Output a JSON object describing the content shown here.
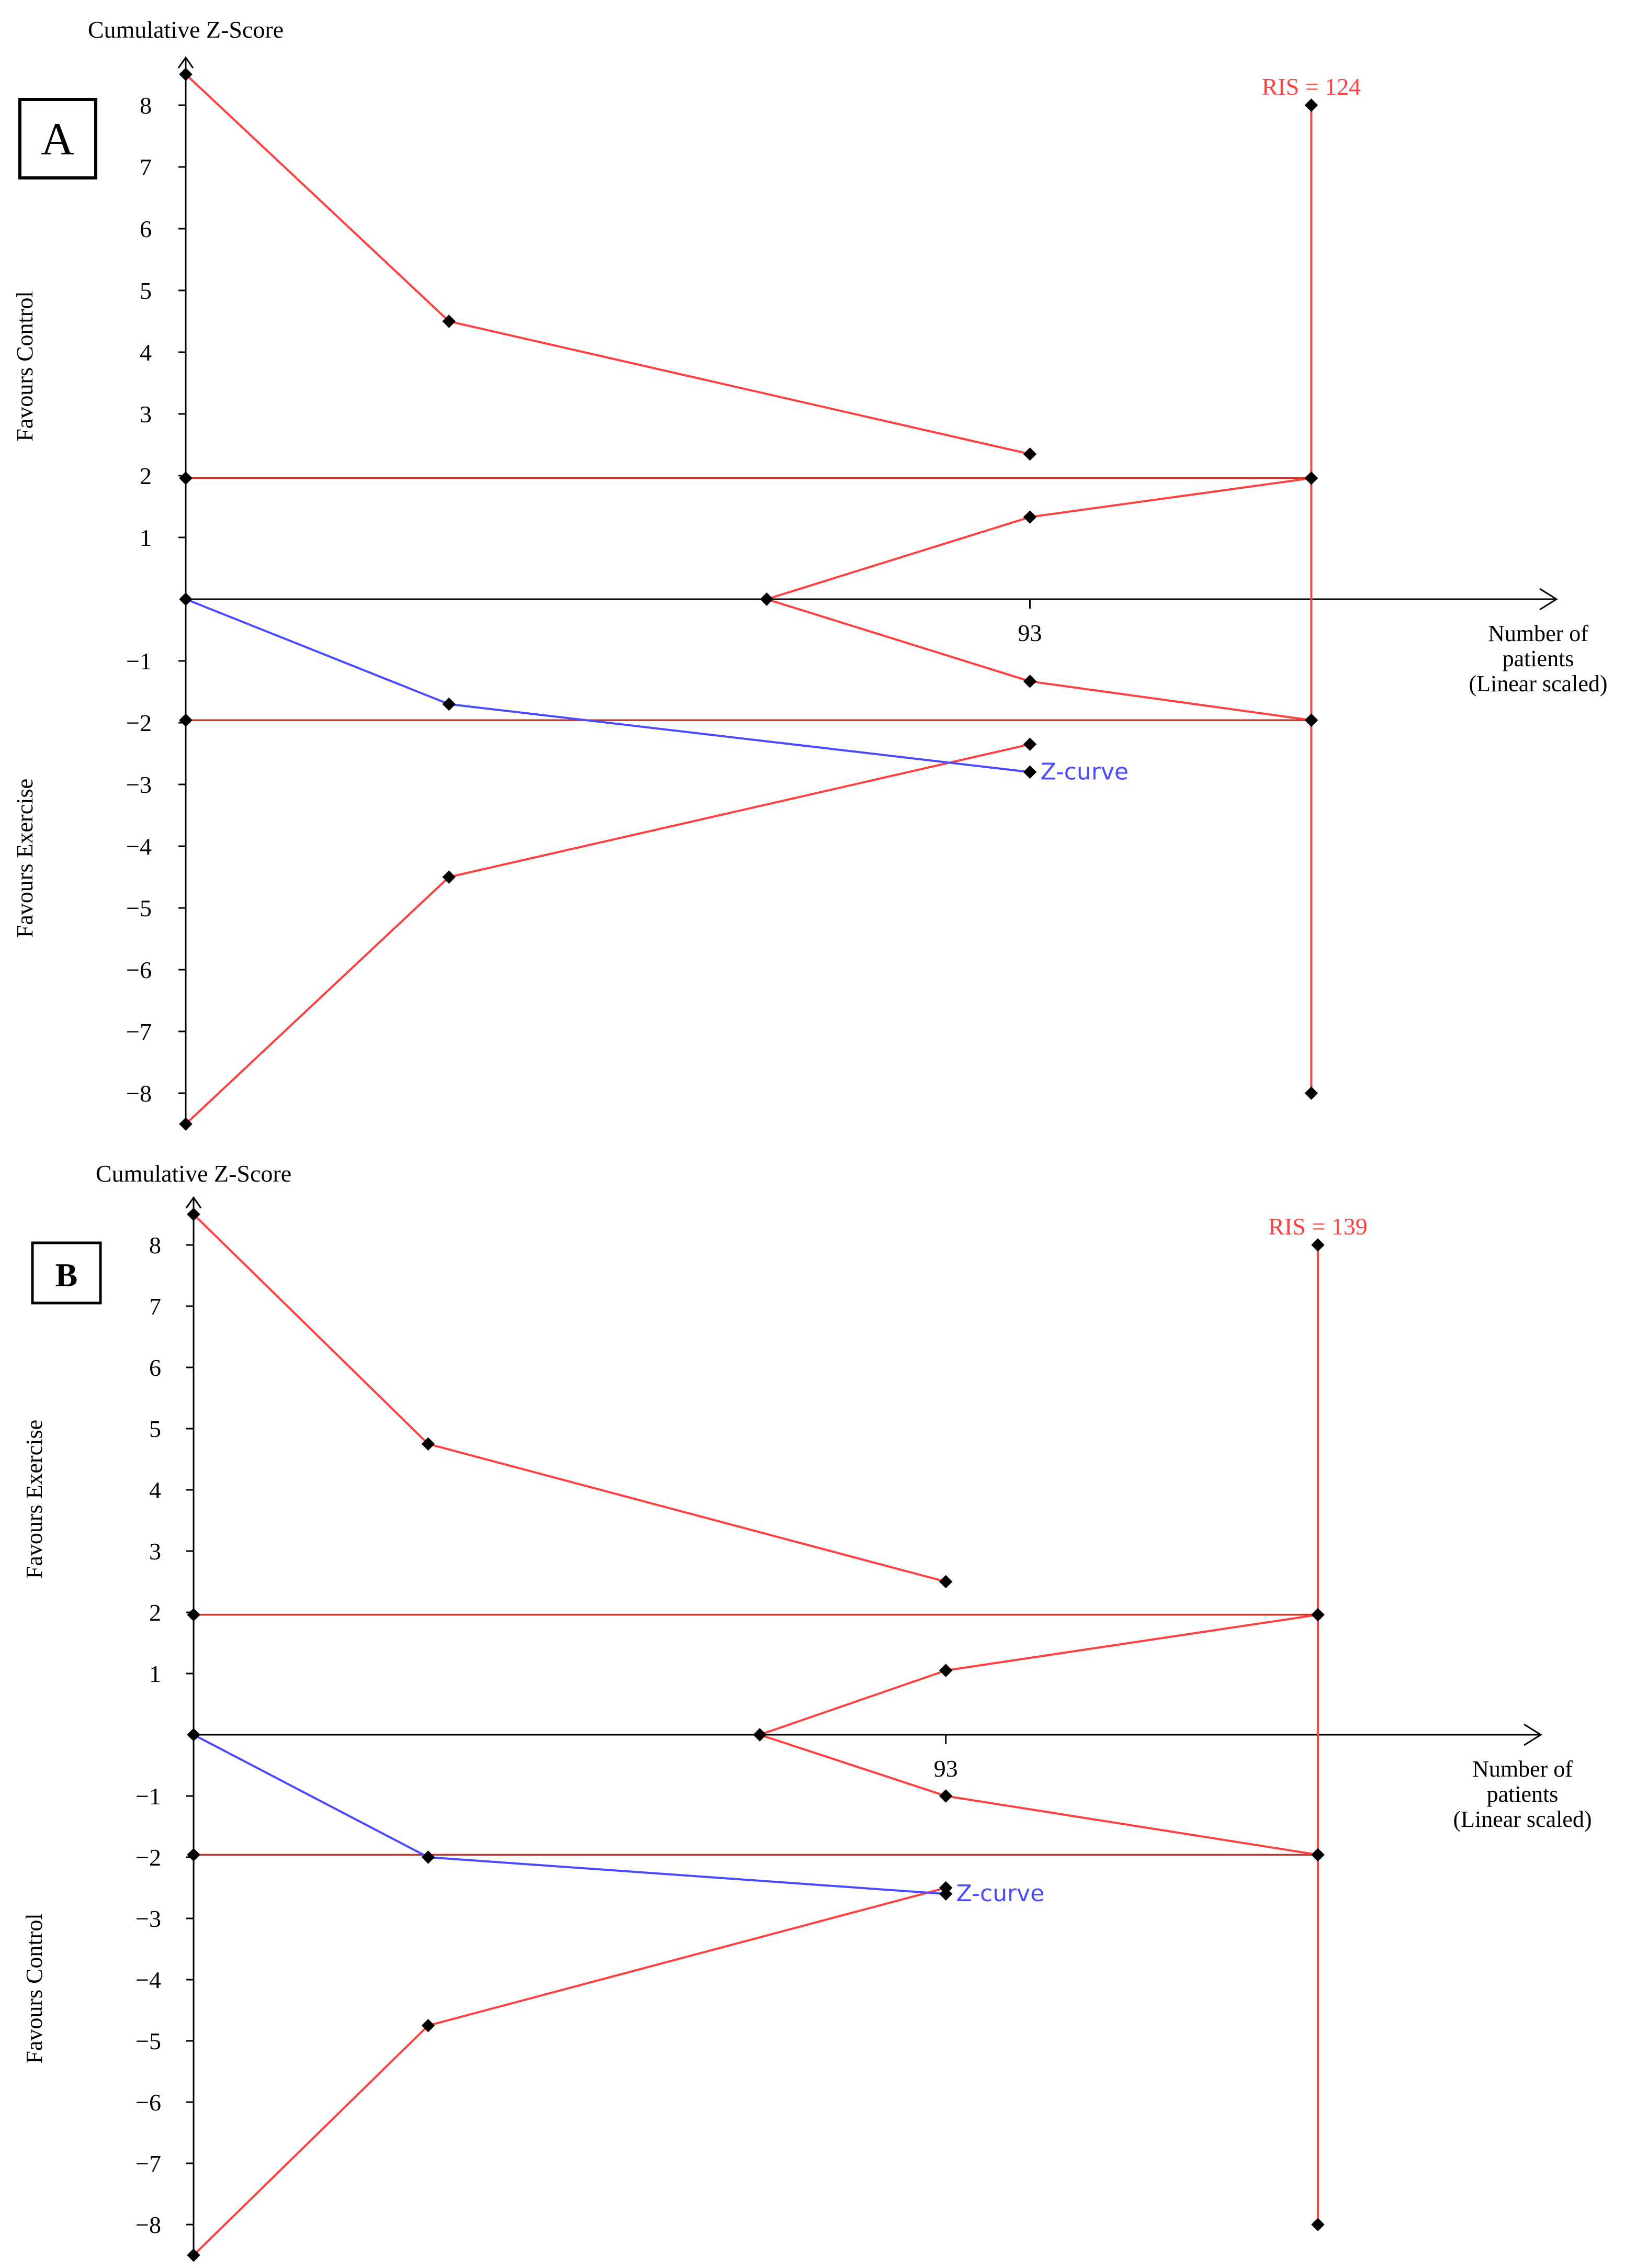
{
  "colors": {
    "boundary": "#ff4040",
    "conventional": "#c0392b",
    "zcurve": "#4a4aff",
    "axis": "#000000",
    "marker": "#000000"
  },
  "chart_data": [
    {
      "type": "line",
      "panel_label": "A",
      "ylabel": "Cumulative Z-Score",
      "xlabel": [
        "Number of",
        "patients",
        "(Linear scaled)"
      ],
      "favours_upper": "Favours Control",
      "favours_lower": "Favours Exercise",
      "ris_label": "RIS = 124",
      "ris": 124,
      "ylim": [
        -8.5,
        8.5
      ],
      "y_ticks": [
        "8",
        "7",
        "6",
        "5",
        "4",
        "3",
        "2",
        "1",
        "-1",
        "-2",
        "-3",
        "-4",
        "-5",
        "-6",
        "-7",
        "-8"
      ],
      "x_tick_label": "93",
      "x_tick_value": 93,
      "zcurve_label": "Z-curve",
      "conventional_bounds": [
        1.96,
        -1.96
      ],
      "series": [
        {
          "name": "upper_monitoring_boundary",
          "x": [
            0,
            29,
            93
          ],
          "y": [
            8.5,
            4.5,
            2.35
          ]
        },
        {
          "name": "lower_monitoring_boundary",
          "x": [
            0,
            29,
            93
          ],
          "y": [
            -8.5,
            -4.5,
            -2.35
          ]
        },
        {
          "name": "upper_futility_boundary",
          "x": [
            64,
            93,
            124
          ],
          "y": [
            0,
            1.33,
            1.96
          ]
        },
        {
          "name": "lower_futility_boundary",
          "x": [
            64,
            93,
            124
          ],
          "y": [
            0,
            -1.33,
            -1.96
          ]
        },
        {
          "name": "ris_line",
          "x": [
            124,
            124,
            124,
            124
          ],
          "y": [
            8.0,
            1.96,
            -1.96,
            -8.0
          ]
        },
        {
          "name": "Z-curve",
          "x": [
            0,
            29,
            93
          ],
          "y": [
            0,
            -1.7,
            -2.8
          ]
        }
      ]
    },
    {
      "type": "line",
      "panel_label": "B",
      "ylabel": "Cumulative Z-Score",
      "xlabel": [
        "Number of",
        "patients",
        "(Linear scaled)"
      ],
      "favours_upper": "Favours Exercise",
      "favours_lower": "Favours Control",
      "ris_label": "RIS = 139",
      "ris": 139,
      "ylim": [
        -8.5,
        8.5
      ],
      "y_ticks": [
        "8",
        "7",
        "6",
        "5",
        "4",
        "3",
        "2",
        "1",
        "-1",
        "-2",
        "-3",
        "-4",
        "-5",
        "-6",
        "-7",
        "-8"
      ],
      "x_tick_label": "93",
      "x_tick_value": 93,
      "zcurve_label": "Z-curve",
      "conventional_bounds": [
        1.96,
        -1.96
      ],
      "series": [
        {
          "name": "upper_monitoring_boundary",
          "x": [
            0,
            29,
            93
          ],
          "y": [
            8.5,
            4.75,
            2.5
          ]
        },
        {
          "name": "lower_monitoring_boundary",
          "x": [
            0,
            29,
            93
          ],
          "y": [
            -8.5,
            -4.75,
            -2.5
          ]
        },
        {
          "name": "upper_futility_boundary",
          "x": [
            70,
            93,
            139
          ],
          "y": [
            0,
            1.05,
            1.96
          ]
        },
        {
          "name": "lower_futility_boundary",
          "x": [
            70,
            93,
            139
          ],
          "y": [
            0,
            -1.0,
            -1.96
          ]
        },
        {
          "name": "ris_line",
          "x": [
            139,
            139,
            139,
            139
          ],
          "y": [
            8.0,
            1.96,
            -1.96,
            -8.0
          ]
        },
        {
          "name": "Z-curve",
          "x": [
            0,
            29,
            93
          ],
          "y": [
            0,
            -2.0,
            -2.6
          ]
        }
      ]
    }
  ]
}
